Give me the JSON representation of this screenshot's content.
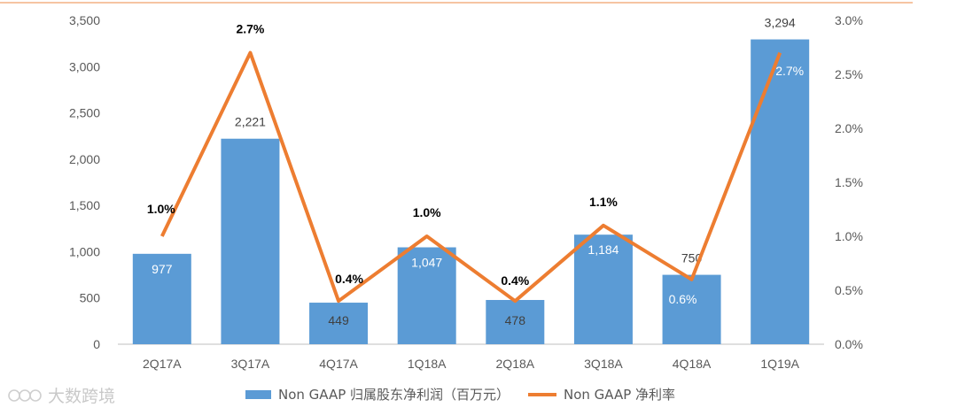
{
  "chart_data": {
    "type": "bar",
    "categories": [
      "2Q17A",
      "3Q17A",
      "4Q17A",
      "1Q18A",
      "2Q18A",
      "3Q18A",
      "4Q18A",
      "1Q19A"
    ],
    "series": [
      {
        "name": "Non GAAP 归属股东净利润（百万元）",
        "type": "bar",
        "axis": "left",
        "values": [
          977,
          2221,
          449,
          1047,
          478,
          1184,
          750,
          3294
        ],
        "labels": [
          "977",
          "2,221",
          "449",
          "1,047",
          "478",
          "1,184",
          "750",
          "3,294"
        ],
        "color": "#5b9bd5"
      },
      {
        "name": "Non GAAP 净利率",
        "type": "line",
        "axis": "right",
        "values": [
          1.0,
          2.7,
          0.4,
          1.0,
          0.4,
          1.1,
          0.6,
          2.7
        ],
        "labels": [
          "1.0%",
          "2.7%",
          "0.4%",
          "1.0%",
          "0.4%",
          "1.1%",
          "0.6%",
          "2.7%"
        ],
        "color": "#ed7d31"
      }
    ],
    "y_left": {
      "range": [
        0,
        3500
      ],
      "ticks": [
        "0",
        "500",
        "1,000",
        "1,500",
        "2,000",
        "2,500",
        "3,000",
        "3,500"
      ]
    },
    "y_right": {
      "range": [
        0,
        3.0
      ],
      "ticks": [
        "0.0%",
        "0.5%",
        "1.0%",
        "1.5%",
        "2.0%",
        "2.5%",
        "3.0%"
      ]
    },
    "legend_position": "bottom",
    "grid": false
  },
  "watermark": {
    "text": "大数跨境"
  },
  "colors": {
    "accent_line": "#f4b183",
    "axis": "#bfbfbf",
    "text": "#595959"
  }
}
